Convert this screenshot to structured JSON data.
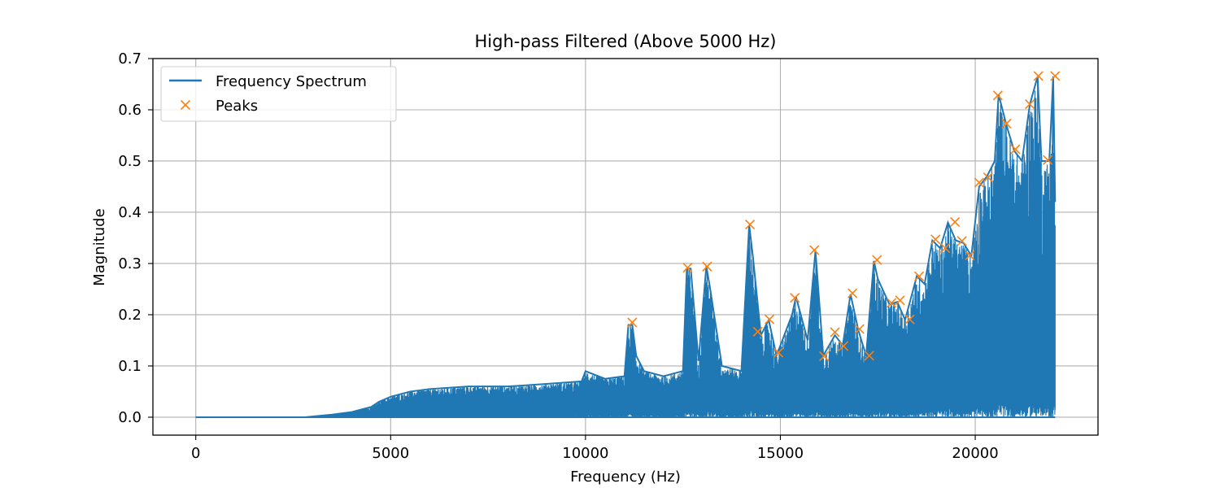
{
  "chart_data": {
    "type": "line",
    "title": "High-pass Filtered (Above 5000 Hz)",
    "xlabel": "Frequency (Hz)",
    "ylabel": "Magnitude",
    "xlim": [
      -1100,
      23150
    ],
    "ylim": [
      -0.035,
      0.7
    ],
    "xticks": [
      0,
      5000,
      10000,
      15000,
      20000
    ],
    "xtick_labels": [
      "0",
      "5000",
      "10000",
      "15000",
      "20000"
    ],
    "yticks": [
      0.0,
      0.1,
      0.2,
      0.3,
      0.4,
      0.5,
      0.6,
      0.7
    ],
    "ytick_labels": [
      "0.0",
      "0.1",
      "0.2",
      "0.3",
      "0.4",
      "0.5",
      "0.6",
      "0.7"
    ],
    "grid": true,
    "legend_position": "top-left",
    "colors": {
      "spectrum": "#1f77b4",
      "peaks": "#ff7f0e",
      "grid": "#b0b0b0"
    },
    "series": [
      {
        "name": "Frequency Spectrum",
        "style": "line",
        "envelope": {
          "x": [
            0,
            2800,
            3500,
            4000,
            4500,
            4700,
            5000,
            5500,
            6000,
            7000,
            8000,
            9000,
            9900,
            10000,
            10500,
            11000,
            11100,
            11200,
            11300,
            11500,
            12000,
            12500,
            12600,
            12700,
            12900,
            13100,
            13200,
            13500,
            14000,
            14200,
            14300,
            14500,
            14700,
            14900,
            15300,
            15400,
            15700,
            15900,
            16100,
            16400,
            16600,
            16800,
            17000,
            17200,
            17400,
            17500,
            17800,
            18000,
            18200,
            18500,
            18700,
            18900,
            19100,
            19300,
            19500,
            19700,
            19900,
            20100,
            20300,
            20500,
            20600,
            20800,
            21000,
            21200,
            21400,
            21600,
            21700,
            21900,
            22000,
            22050
          ],
          "y": [
            0.0,
            0.0,
            0.005,
            0.01,
            0.02,
            0.03,
            0.04,
            0.05,
            0.055,
            0.06,
            0.06,
            0.065,
            0.07,
            0.09,
            0.075,
            0.08,
            0.18,
            0.18,
            0.12,
            0.09,
            0.08,
            0.09,
            0.29,
            0.29,
            0.11,
            0.295,
            0.25,
            0.1,
            0.09,
            0.375,
            0.31,
            0.16,
            0.19,
            0.12,
            0.2,
            0.235,
            0.15,
            0.325,
            0.12,
            0.16,
            0.14,
            0.24,
            0.17,
            0.12,
            0.305,
            0.27,
            0.22,
            0.225,
            0.19,
            0.275,
            0.26,
            0.345,
            0.33,
            0.38,
            0.345,
            0.34,
            0.315,
            0.45,
            0.47,
            0.5,
            0.63,
            0.57,
            0.52,
            0.5,
            0.61,
            0.665,
            0.5,
            0.5,
            0.665,
            0.42
          ]
        }
      },
      {
        "name": "Peaks",
        "style": "marker-x",
        "x": [
          11200,
          12620,
          13120,
          14220,
          14420,
          14720,
          14950,
          15370,
          15870,
          16120,
          16400,
          16620,
          16850,
          17030,
          17280,
          17480,
          17850,
          18070,
          18320,
          18560,
          18980,
          19230,
          19480,
          19660,
          19860,
          20100,
          20330,
          20580,
          20800,
          21030,
          21400,
          21620,
          21860,
          22050
        ],
        "y": [
          0.185,
          0.292,
          0.294,
          0.376,
          0.167,
          0.191,
          0.126,
          0.233,
          0.326,
          0.119,
          0.166,
          0.139,
          0.242,
          0.172,
          0.12,
          0.307,
          0.223,
          0.228,
          0.191,
          0.275,
          0.347,
          0.33,
          0.381,
          0.344,
          0.316,
          0.458,
          0.468,
          0.628,
          0.573,
          0.523,
          0.611,
          0.666,
          0.502,
          0.666
        ]
      }
    ]
  }
}
